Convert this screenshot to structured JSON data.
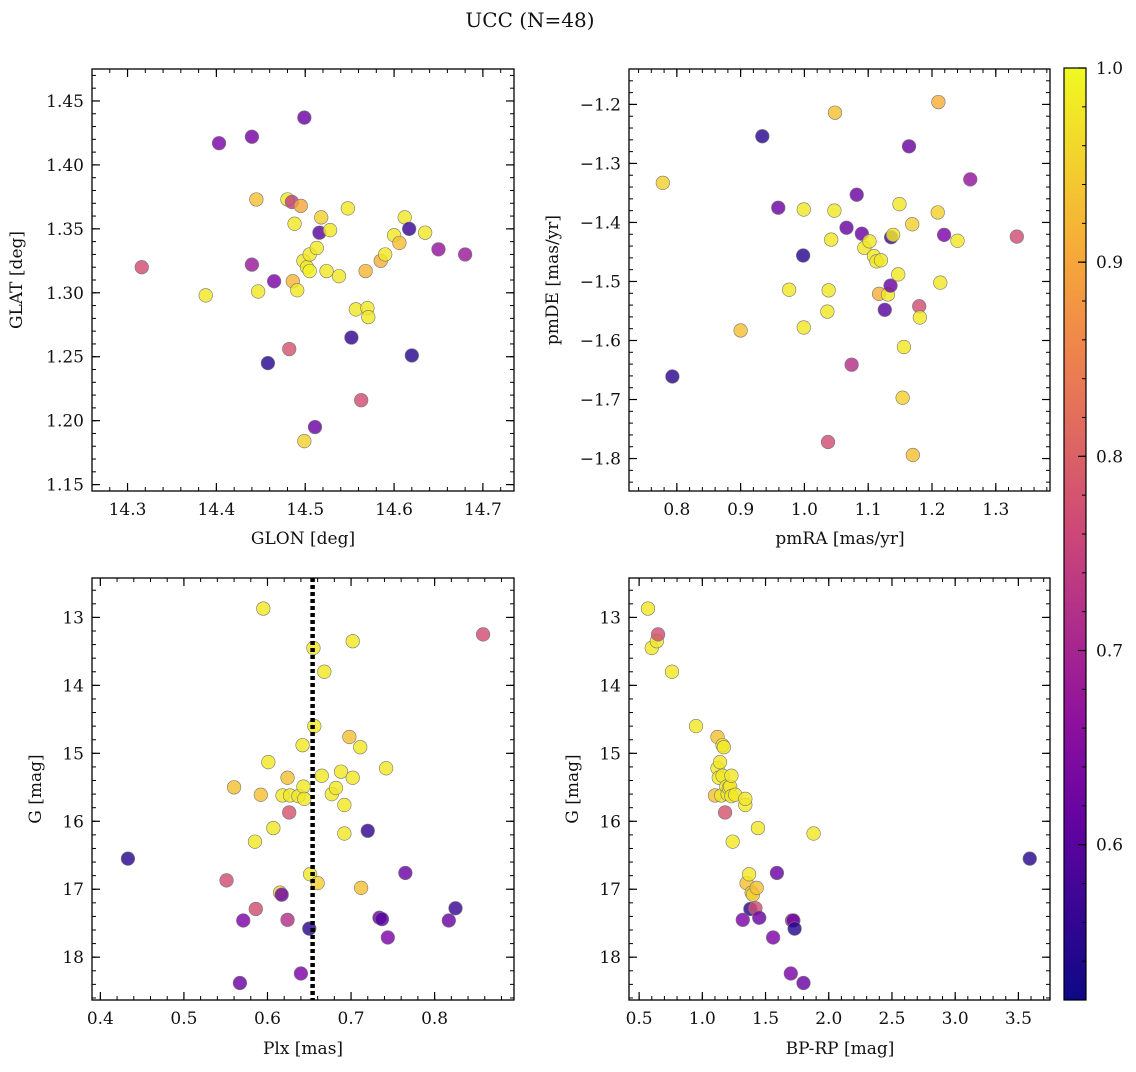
{
  "figure": {
    "title": "UCC (N=48)"
  },
  "colorbar": {
    "min": 0.52,
    "max": 1.0,
    "ticks": [
      0.6,
      0.7,
      0.8,
      0.9,
      1.0
    ],
    "tick_labels": [
      "0.6",
      "0.7",
      "0.8",
      "0.9",
      "1.0"
    ],
    "colormap": "plasma"
  },
  "chart_data": [
    {
      "type": "scatter",
      "id": "glon-glat",
      "xlabel": "GLON [deg]",
      "ylabel": "GLAT [deg]",
      "xlim": [
        14.26,
        14.735
      ],
      "ylim": [
        1.145,
        1.475
      ],
      "invert_y": false,
      "xticks": [
        14.3,
        14.4,
        14.5,
        14.6,
        14.7
      ],
      "xtick_labels": [
        "14.3",
        "14.4",
        "14.5",
        "14.6",
        "14.7"
      ],
      "yticks": [
        1.15,
        1.2,
        1.25,
        1.3,
        1.35,
        1.4,
        1.45
      ],
      "ytick_labels": [
        "1.15",
        "1.20",
        "1.25",
        "1.30",
        "1.35",
        "1.40",
        "1.45"
      ],
      "points": [
        {
          "x": 14.316,
          "y": 1.32,
          "c": 0.77
        },
        {
          "x": 14.388,
          "y": 1.298,
          "c": 0.98
        },
        {
          "x": 14.403,
          "y": 1.417,
          "c": 0.64
        },
        {
          "x": 14.44,
          "y": 1.422,
          "c": 0.63
        },
        {
          "x": 14.44,
          "y": 1.322,
          "c": 0.68
        },
        {
          "x": 14.445,
          "y": 1.373,
          "c": 0.93
        },
        {
          "x": 14.447,
          "y": 1.301,
          "c": 0.98
        },
        {
          "x": 14.458,
          "y": 1.245,
          "c": 0.55
        },
        {
          "x": 14.465,
          "y": 1.309,
          "c": 0.64
        },
        {
          "x": 14.48,
          "y": 1.373,
          "c": 0.98
        },
        {
          "x": 14.482,
          "y": 1.256,
          "c": 0.78
        },
        {
          "x": 14.485,
          "y": 1.371,
          "c": 0.74
        },
        {
          "x": 14.486,
          "y": 1.309,
          "c": 0.92
        },
        {
          "x": 14.488,
          "y": 1.354,
          "c": 0.98
        },
        {
          "x": 14.491,
          "y": 1.302,
          "c": 0.98
        },
        {
          "x": 14.495,
          "y": 1.368,
          "c": 0.9
        },
        {
          "x": 14.498,
          "y": 1.325,
          "c": 0.98
        },
        {
          "x": 14.499,
          "y": 1.437,
          "c": 0.62
        },
        {
          "x": 14.499,
          "y": 1.184,
          "c": 0.95
        },
        {
          "x": 14.502,
          "y": 1.32,
          "c": 0.98
        },
        {
          "x": 14.505,
          "y": 1.33,
          "c": 0.98
        },
        {
          "x": 14.505,
          "y": 1.317,
          "c": 0.99
        },
        {
          "x": 14.511,
          "y": 1.195,
          "c": 0.62
        },
        {
          "x": 14.513,
          "y": 1.335,
          "c": 0.98
        },
        {
          "x": 14.516,
          "y": 1.347,
          "c": 0.6
        },
        {
          "x": 14.518,
          "y": 1.359,
          "c": 0.95
        },
        {
          "x": 14.524,
          "y": 1.317,
          "c": 0.98
        },
        {
          "x": 14.528,
          "y": 1.349,
          "c": 0.98
        },
        {
          "x": 14.538,
          "y": 1.313,
          "c": 0.98
        },
        {
          "x": 14.548,
          "y": 1.366,
          "c": 0.98
        },
        {
          "x": 14.552,
          "y": 1.265,
          "c": 0.56
        },
        {
          "x": 14.557,
          "y": 1.287,
          "c": 0.98
        },
        {
          "x": 14.563,
          "y": 1.216,
          "c": 0.77
        },
        {
          "x": 14.568,
          "y": 1.317,
          "c": 0.92
        },
        {
          "x": 14.57,
          "y": 1.288,
          "c": 0.98
        },
        {
          "x": 14.571,
          "y": 1.281,
          "c": 0.98
        },
        {
          "x": 14.585,
          "y": 1.325,
          "c": 0.91
        },
        {
          "x": 14.59,
          "y": 1.33,
          "c": 0.98
        },
        {
          "x": 14.6,
          "y": 1.345,
          "c": 0.98
        },
        {
          "x": 14.606,
          "y": 1.339,
          "c": 0.93
        },
        {
          "x": 14.612,
          "y": 1.359,
          "c": 0.98
        },
        {
          "x": 14.617,
          "y": 1.35,
          "c": 0.57
        },
        {
          "x": 14.62,
          "y": 1.251,
          "c": 0.55
        },
        {
          "x": 14.635,
          "y": 1.347,
          "c": 0.98
        },
        {
          "x": 14.65,
          "y": 1.334,
          "c": 0.67
        },
        {
          "x": 14.68,
          "y": 1.33,
          "c": 0.68
        }
      ]
    },
    {
      "type": "scatter",
      "id": "pmra-pmde",
      "xlabel": "pmRA [mas/yr]",
      "ylabel": "pmDE [mas/yr]",
      "xlim": [
        0.725,
        1.385
      ],
      "ylim": [
        -1.855,
        -1.14
      ],
      "invert_y": false,
      "xticks": [
        0.8,
        0.9,
        1.0,
        1.1,
        1.2,
        1.3
      ],
      "xtick_labels": [
        "0.8",
        "0.9",
        "1.0",
        "1.1",
        "1.2",
        "1.3"
      ],
      "yticks": [
        -1.8,
        -1.7,
        -1.6,
        -1.5,
        -1.4,
        -1.3,
        -1.2
      ],
      "ytick_labels": [
        "−1.8",
        "−1.7",
        "−1.6",
        "−1.5",
        "−1.4",
        "−1.3",
        "−1.2"
      ],
      "points": [
        {
          "x": 0.778,
          "y": -1.333,
          "c": 0.95
        },
        {
          "x": 0.793,
          "y": -1.661,
          "c": 0.55
        },
        {
          "x": 0.9,
          "y": -1.583,
          "c": 0.93
        },
        {
          "x": 0.934,
          "y": -1.254,
          "c": 0.55
        },
        {
          "x": 0.959,
          "y": -1.375,
          "c": 0.62
        },
        {
          "x": 0.976,
          "y": -1.514,
          "c": 0.98
        },
        {
          "x": 0.998,
          "y": -1.456,
          "c": 0.55
        },
        {
          "x": 0.999,
          "y": -1.378,
          "c": 0.98
        },
        {
          "x": 0.999,
          "y": -1.578,
          "c": 0.98
        },
        {
          "x": 1.036,
          "y": -1.551,
          "c": 0.98
        },
        {
          "x": 1.037,
          "y": -1.772,
          "c": 0.77
        },
        {
          "x": 1.038,
          "y": -1.515,
          "c": 0.98
        },
        {
          "x": 1.042,
          "y": -1.429,
          "c": 0.98
        },
        {
          "x": 1.047,
          "y": -1.38,
          "c": 0.98
        },
        {
          "x": 1.048,
          "y": -1.214,
          "c": 0.93
        },
        {
          "x": 1.066,
          "y": -1.409,
          "c": 0.62
        },
        {
          "x": 1.074,
          "y": -1.641,
          "c": 0.72
        },
        {
          "x": 1.082,
          "y": -1.353,
          "c": 0.62
        },
        {
          "x": 1.09,
          "y": -1.419,
          "c": 0.62
        },
        {
          "x": 1.094,
          "y": -1.443,
          "c": 0.98
        },
        {
          "x": 1.102,
          "y": -1.432,
          "c": 0.98
        },
        {
          "x": 1.109,
          "y": -1.457,
          "c": 0.98
        },
        {
          "x": 1.113,
          "y": -1.466,
          "c": 0.98
        },
        {
          "x": 1.117,
          "y": -1.521,
          "c": 0.91
        },
        {
          "x": 1.12,
          "y": -1.464,
          "c": 0.98
        },
        {
          "x": 1.126,
          "y": -1.548,
          "c": 0.6
        },
        {
          "x": 1.131,
          "y": -1.522,
          "c": 0.98
        },
        {
          "x": 1.135,
          "y": -1.507,
          "c": 0.62
        },
        {
          "x": 1.136,
          "y": -1.425,
          "c": 0.57
        },
        {
          "x": 1.139,
          "y": -1.421,
          "c": 0.98
        },
        {
          "x": 1.147,
          "y": -1.488,
          "c": 0.98
        },
        {
          "x": 1.149,
          "y": -1.369,
          "c": 0.98
        },
        {
          "x": 1.154,
          "y": -1.697,
          "c": 0.95
        },
        {
          "x": 1.156,
          "y": -1.611,
          "c": 0.98
        },
        {
          "x": 1.164,
          "y": -1.271,
          "c": 0.62
        },
        {
          "x": 1.169,
          "y": -1.403,
          "c": 0.95
        },
        {
          "x": 1.17,
          "y": -1.794,
          "c": 0.93
        },
        {
          "x": 1.18,
          "y": -1.542,
          "c": 0.77
        },
        {
          "x": 1.181,
          "y": -1.561,
          "c": 0.98
        },
        {
          "x": 1.209,
          "y": -1.383,
          "c": 0.95
        },
        {
          "x": 1.21,
          "y": -1.196,
          "c": 0.91
        },
        {
          "x": 1.213,
          "y": -1.502,
          "c": 0.98
        },
        {
          "x": 1.219,
          "y": -1.421,
          "c": 0.64
        },
        {
          "x": 1.24,
          "y": -1.431,
          "c": 0.98
        },
        {
          "x": 1.26,
          "y": -1.327,
          "c": 0.67
        },
        {
          "x": 1.333,
          "y": -1.424,
          "c": 0.77
        }
      ]
    },
    {
      "type": "scatter",
      "id": "plx-g",
      "xlabel": "Plx [mas]",
      "ylabel": "G [mag]",
      "xlim": [
        0.39,
        0.895
      ],
      "ylim": [
        12.42,
        18.63
      ],
      "invert_y": true,
      "xticks": [
        0.4,
        0.5,
        0.6,
        0.7,
        0.8
      ],
      "xtick_labels": [
        "0.4",
        "0.5",
        "0.6",
        "0.7",
        "0.8"
      ],
      "yticks": [
        13,
        14,
        15,
        16,
        17,
        18
      ],
      "ytick_labels": [
        "13",
        "14",
        "15",
        "16",
        "17",
        "18"
      ],
      "vline": {
        "x": 0.654
      },
      "points": [
        {
          "x": 0.433,
          "y": 16.55,
          "c": 0.55
        },
        {
          "x": 0.551,
          "y": 16.87,
          "c": 0.77
        },
        {
          "x": 0.56,
          "y": 15.5,
          "c": 0.93
        },
        {
          "x": 0.567,
          "y": 18.38,
          "c": 0.62
        },
        {
          "x": 0.571,
          "y": 17.46,
          "c": 0.64
        },
        {
          "x": 0.585,
          "y": 16.3,
          "c": 0.98
        },
        {
          "x": 0.586,
          "y": 17.29,
          "c": 0.77
        },
        {
          "x": 0.592,
          "y": 15.61,
          "c": 0.93
        },
        {
          "x": 0.595,
          "y": 12.87,
          "c": 0.98
        },
        {
          "x": 0.601,
          "y": 15.13,
          "c": 0.98
        },
        {
          "x": 0.607,
          "y": 16.1,
          "c": 0.98
        },
        {
          "x": 0.615,
          "y": 17.05,
          "c": 0.95
        },
        {
          "x": 0.617,
          "y": 17.08,
          "c": 0.62
        },
        {
          "x": 0.618,
          "y": 15.62,
          "c": 0.98
        },
        {
          "x": 0.624,
          "y": 15.36,
          "c": 0.93
        },
        {
          "x": 0.624,
          "y": 17.45,
          "c": 0.72
        },
        {
          "x": 0.626,
          "y": 15.87,
          "c": 0.78
        },
        {
          "x": 0.627,
          "y": 15.62,
          "c": 0.98
        },
        {
          "x": 0.637,
          "y": 15.63,
          "c": 0.98
        },
        {
          "x": 0.64,
          "y": 18.24,
          "c": 0.64
        },
        {
          "x": 0.642,
          "y": 14.88,
          "c": 0.98
        },
        {
          "x": 0.643,
          "y": 15.49,
          "c": 0.98
        },
        {
          "x": 0.644,
          "y": 15.67,
          "c": 0.98
        },
        {
          "x": 0.65,
          "y": 17.58,
          "c": 0.55
        },
        {
          "x": 0.651,
          "y": 16.78,
          "c": 0.98
        },
        {
          "x": 0.655,
          "y": 13.45,
          "c": 0.98
        },
        {
          "x": 0.656,
          "y": 14.6,
          "c": 0.98
        },
        {
          "x": 0.66,
          "y": 16.91,
          "c": 0.95
        },
        {
          "x": 0.665,
          "y": 15.33,
          "c": 0.98
        },
        {
          "x": 0.668,
          "y": 13.8,
          "c": 0.98
        },
        {
          "x": 0.677,
          "y": 15.6,
          "c": 0.98
        },
        {
          "x": 0.682,
          "y": 15.51,
          "c": 0.98
        },
        {
          "x": 0.688,
          "y": 15.27,
          "c": 0.98
        },
        {
          "x": 0.692,
          "y": 15.76,
          "c": 0.98
        },
        {
          "x": 0.692,
          "y": 16.18,
          "c": 0.98
        },
        {
          "x": 0.698,
          "y": 14.76,
          "c": 0.93
        },
        {
          "x": 0.702,
          "y": 13.35,
          "c": 0.98
        },
        {
          "x": 0.702,
          "y": 15.36,
          "c": 0.98
        },
        {
          "x": 0.711,
          "y": 14.91,
          "c": 0.98
        },
        {
          "x": 0.712,
          "y": 16.98,
          "c": 0.93
        },
        {
          "x": 0.72,
          "y": 16.14,
          "c": 0.56
        },
        {
          "x": 0.734,
          "y": 17.42,
          "c": 0.62
        },
        {
          "x": 0.737,
          "y": 17.44,
          "c": 0.6
        },
        {
          "x": 0.742,
          "y": 15.22,
          "c": 0.98
        },
        {
          "x": 0.744,
          "y": 17.71,
          "c": 0.64
        },
        {
          "x": 0.765,
          "y": 16.76,
          "c": 0.62
        },
        {
          "x": 0.817,
          "y": 17.46,
          "c": 0.62
        },
        {
          "x": 0.825,
          "y": 17.28,
          "c": 0.57
        },
        {
          "x": 0.858,
          "y": 13.25,
          "c": 0.77
        }
      ]
    },
    {
      "type": "scatter",
      "id": "bprp-g",
      "xlabel": "BP-RP [mag]",
      "ylabel": "G [mag]",
      "xlim": [
        0.42,
        3.75
      ],
      "ylim": [
        12.42,
        18.63
      ],
      "invert_y": true,
      "xticks": [
        0.5,
        1.0,
        1.5,
        2.0,
        2.5,
        3.0,
        3.5
      ],
      "xtick_labels": [
        "0.5",
        "1.0",
        "1.5",
        "2.0",
        "2.5",
        "3.0",
        "3.5"
      ],
      "yticks": [
        13,
        14,
        15,
        16,
        17,
        18
      ],
      "ytick_labels": [
        "13",
        "14",
        "15",
        "16",
        "17",
        "18"
      ],
      "points": [
        {
          "x": 0.57,
          "y": 12.87,
          "c": 0.98
        },
        {
          "x": 0.6,
          "y": 13.45,
          "c": 0.98
        },
        {
          "x": 0.64,
          "y": 13.35,
          "c": 0.98
        },
        {
          "x": 0.65,
          "y": 13.25,
          "c": 0.77
        },
        {
          "x": 0.76,
          "y": 13.8,
          "c": 0.98
        },
        {
          "x": 0.95,
          "y": 14.6,
          "c": 0.98
        },
        {
          "x": 1.1,
          "y": 15.62,
          "c": 0.93
        },
        {
          "x": 1.12,
          "y": 14.76,
          "c": 0.93
        },
        {
          "x": 1.12,
          "y": 15.22,
          "c": 0.98
        },
        {
          "x": 1.13,
          "y": 15.36,
          "c": 0.98
        },
        {
          "x": 1.14,
          "y": 15.13,
          "c": 0.98
        },
        {
          "x": 1.15,
          "y": 15.62,
          "c": 0.98
        },
        {
          "x": 1.16,
          "y": 14.88,
          "c": 0.98
        },
        {
          "x": 1.16,
          "y": 15.33,
          "c": 0.98
        },
        {
          "x": 1.17,
          "y": 14.91,
          "c": 0.98
        },
        {
          "x": 1.18,
          "y": 15.87,
          "c": 0.78
        },
        {
          "x": 1.19,
          "y": 15.49,
          "c": 0.98
        },
        {
          "x": 1.2,
          "y": 15.6,
          "c": 0.98
        },
        {
          "x": 1.21,
          "y": 15.51,
          "c": 0.98
        },
        {
          "x": 1.22,
          "y": 15.49,
          "c": 0.98
        },
        {
          "x": 1.23,
          "y": 15.63,
          "c": 0.98
        },
        {
          "x": 1.23,
          "y": 15.33,
          "c": 0.98
        },
        {
          "x": 1.24,
          "y": 16.3,
          "c": 0.98
        },
        {
          "x": 1.26,
          "y": 15.61,
          "c": 0.98
        },
        {
          "x": 1.32,
          "y": 17.45,
          "c": 0.64
        },
        {
          "x": 1.34,
          "y": 15.76,
          "c": 0.98
        },
        {
          "x": 1.34,
          "y": 15.67,
          "c": 0.98
        },
        {
          "x": 1.35,
          "y": 16.91,
          "c": 0.93
        },
        {
          "x": 1.37,
          "y": 16.78,
          "c": 0.98
        },
        {
          "x": 1.38,
          "y": 17.29,
          "c": 0.55
        },
        {
          "x": 1.39,
          "y": 17.05,
          "c": 0.95
        },
        {
          "x": 1.4,
          "y": 17.08,
          "c": 0.95
        },
        {
          "x": 1.42,
          "y": 17.28,
          "c": 0.77
        },
        {
          "x": 1.43,
          "y": 16.98,
          "c": 0.93
        },
        {
          "x": 1.44,
          "y": 16.1,
          "c": 0.98
        },
        {
          "x": 1.45,
          "y": 17.42,
          "c": 0.62
        },
        {
          "x": 1.56,
          "y": 17.71,
          "c": 0.64
        },
        {
          "x": 1.59,
          "y": 16.76,
          "c": 0.62
        },
        {
          "x": 1.7,
          "y": 18.24,
          "c": 0.64
        },
        {
          "x": 1.71,
          "y": 17.46,
          "c": 0.72
        },
        {
          "x": 1.72,
          "y": 17.46,
          "c": 0.62
        },
        {
          "x": 1.73,
          "y": 17.58,
          "c": 0.55
        },
        {
          "x": 1.8,
          "y": 18.38,
          "c": 0.62
        },
        {
          "x": 1.88,
          "y": 16.18,
          "c": 0.98
        },
        {
          "x": 3.59,
          "y": 16.55,
          "c": 0.55
        }
      ]
    }
  ]
}
